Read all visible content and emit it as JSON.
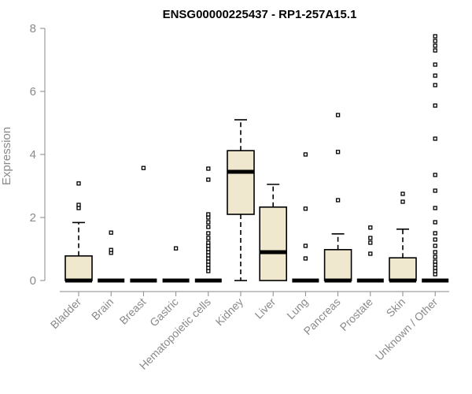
{
  "chart_data": {
    "type": "box",
    "title": "ENSG00000225437 - RP1-257A15.1",
    "ylabel": "Expression",
    "xlabel": "",
    "ylim": [
      0,
      8
    ],
    "yticks": [
      "0",
      "2",
      "4",
      "6",
      "8"
    ],
    "box_fill": "#efe8cf",
    "categories": [
      "Bladder",
      "Brain",
      "Breast",
      "Gastric",
      "Hematopoietic cells",
      "Kidney",
      "Liver",
      "Lung",
      "Pancreas",
      "Prostate",
      "Skin",
      "Unknown / Other"
    ],
    "series": [
      {
        "q1": 0,
        "median": 0,
        "q3": 0.78,
        "whisker_low": 0,
        "whisker_high": 1.84,
        "outliers": [
          2.3,
          2.4,
          3.08
        ]
      },
      {
        "q1": 0,
        "median": 0,
        "q3": 0,
        "whisker_low": 0,
        "whisker_high": 0,
        "outliers": [
          0.88,
          0.97,
          1.52
        ]
      },
      {
        "q1": 0,
        "median": 0,
        "q3": 0,
        "whisker_low": 0,
        "whisker_high": 0,
        "outliers": [
          3.57
        ]
      },
      {
        "q1": 0,
        "median": 0,
        "q3": 0,
        "whisker_low": 0,
        "whisker_high": 0,
        "outliers": [
          1.02
        ]
      },
      {
        "q1": 0,
        "median": 0,
        "q3": 0,
        "whisker_low": 0,
        "whisker_high": 0,
        "outliers": [
          0.3,
          0.4,
          0.5,
          0.6,
          0.7,
          0.8,
          0.9,
          1.0,
          1.1,
          1.2,
          1.35,
          1.5,
          1.7,
          1.85,
          2.0,
          2.1,
          3.2,
          3.55
        ]
      },
      {
        "q1": 2.1,
        "median": 3.45,
        "q3": 4.12,
        "whisker_low": 0,
        "whisker_high": 5.1,
        "outliers": []
      },
      {
        "q1": 0,
        "median": 0.9,
        "q3": 2.33,
        "whisker_low": 0,
        "whisker_high": 3.05,
        "outliers": []
      },
      {
        "q1": 0,
        "median": 0,
        "q3": 0,
        "whisker_low": 0,
        "whisker_high": 0,
        "outliers": [
          0.7,
          1.1,
          2.28,
          4.0
        ]
      },
      {
        "q1": 0,
        "median": 0,
        "q3": 0.98,
        "whisker_low": 0,
        "whisker_high": 1.48,
        "outliers": [
          2.55,
          4.08,
          5.25
        ]
      },
      {
        "q1": 0,
        "median": 0,
        "q3": 0,
        "whisker_low": 0,
        "whisker_high": 0,
        "outliers": [
          0.85,
          1.2,
          1.35,
          1.68
        ]
      },
      {
        "q1": 0,
        "median": 0,
        "q3": 0.72,
        "whisker_low": 0,
        "whisker_high": 1.63,
        "outliers": [
          2.5,
          2.75
        ]
      },
      {
        "q1": 0,
        "median": 0,
        "q3": 0,
        "whisker_low": 0,
        "whisker_high": 0,
        "outliers": [
          0.2,
          0.3,
          0.4,
          0.5,
          0.6,
          0.75,
          0.9,
          1.1,
          1.3,
          1.5,
          1.85,
          2.3,
          2.85,
          3.35,
          4.5,
          5.55,
          6.2,
          6.5,
          6.85,
          7.3,
          7.45,
          7.6,
          7.75
        ]
      }
    ]
  }
}
